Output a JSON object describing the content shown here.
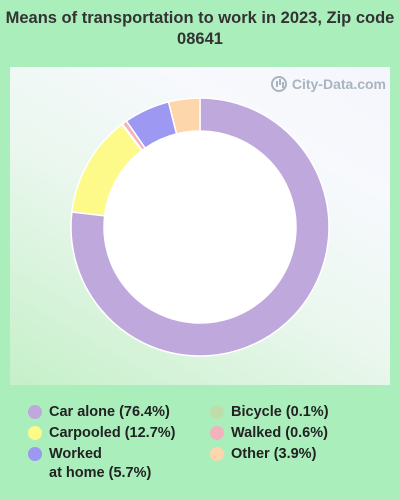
{
  "chart_data": {
    "type": "pie",
    "title": "Means of transportation to work in 2023, Zip code 08641",
    "watermark": "City-Data.com",
    "legend_position": "bottom",
    "slices": [
      {
        "label": "Car alone",
        "value": 76.4,
        "legend": "Car alone (76.4%)",
        "color": "#bfa8dc"
      },
      {
        "label": "Carpooled",
        "value": 12.7,
        "legend": "Carpooled (12.7%)",
        "color": "#fdfa8a"
      },
      {
        "label": "Worked at home",
        "value": 5.7,
        "legend_line1": "Worked",
        "legend_line2": "at home (5.7%)",
        "color": "#9d98f1"
      },
      {
        "label": "Bicycle",
        "value": 0.1,
        "legend": "Bicycle (0.1%)",
        "color": "#bfdcab"
      },
      {
        "label": "Walked",
        "value": 0.6,
        "legend": "Walked (0.6%)",
        "color": "#f4b2bd"
      },
      {
        "label": "Other",
        "value": 3.9,
        "legend": "Other (3.9%)",
        "color": "#fdd6ac"
      }
    ],
    "draw_order": [
      "Car alone",
      "Carpooled",
      "Bicycle",
      "Walked",
      "Worked at home",
      "Other"
    ]
  }
}
